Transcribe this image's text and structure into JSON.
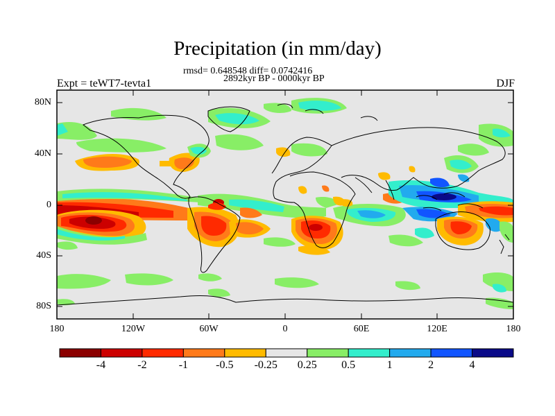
{
  "title": "Precipitation (in mm/day)",
  "stats_line1": "rmsd= 0.648548 diff= 0.0742416",
  "stats_line2": "2892kyr BP - 0000kyr BP",
  "experiment_label": "Expt = teWT7-tevta1",
  "season_label": "DJF",
  "lat_ticks": [
    "80N",
    "40N",
    "0",
    "40S",
    "80S"
  ],
  "lon_ticks": [
    "180",
    "120W",
    "60W",
    "0",
    "60E",
    "120E",
    "180"
  ],
  "colorbar": {
    "labels": [
      "-4",
      "-2",
      "-1",
      "-0.5",
      "-0.25",
      "0.25",
      "0.5",
      "1",
      "2",
      "4"
    ],
    "colors": [
      "#8b0000",
      "#cc0000",
      "#ff2a00",
      "#ff7a1a",
      "#ffbb00",
      "#e6e6e6",
      "#88ee66",
      "#33eecc",
      "#22aaee",
      "#1155ff",
      "#0a0a88"
    ]
  },
  "map_colors": {
    "land_ocean_background": "#e6e6e6",
    "coastline": "#000000"
  }
}
